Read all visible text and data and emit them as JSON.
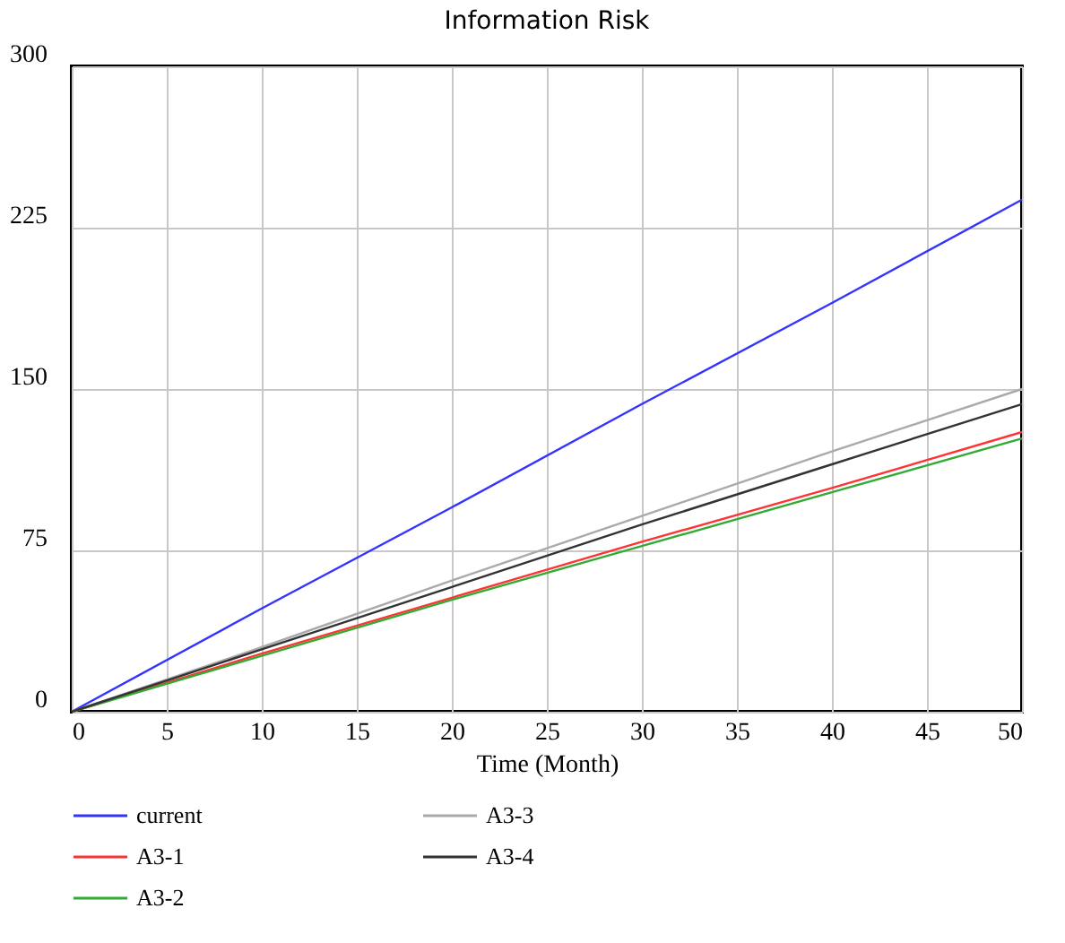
{
  "chart_data": {
    "type": "line",
    "title": "Information Risk",
    "xlabel": "Time (Month)",
    "x": [
      0,
      10,
      20,
      30,
      40,
      50
    ],
    "series": [
      {
        "name": "current",
        "color": "#3333ff",
        "values": [
          0,
          48,
          95,
          143,
          190,
          238
        ]
      },
      {
        "name": "A3-1",
        "color": "#ff3333",
        "values": [
          0,
          27,
          53,
          79,
          104,
          130
        ]
      },
      {
        "name": "A3-2",
        "color": "#33aa33",
        "values": [
          0,
          26,
          52,
          77,
          102,
          127
        ]
      },
      {
        "name": "A3-3",
        "color": "#aaaaaa",
        "values": [
          0,
          30,
          61,
          91,
          121,
          150
        ]
      },
      {
        "name": "A3-4",
        "color": "#333333",
        "values": [
          0,
          29,
          58,
          87,
          115,
          143
        ]
      }
    ],
    "xlim": [
      0,
      50
    ],
    "xticks": [
      0,
      5,
      10,
      15,
      20,
      25,
      30,
      35,
      40,
      45,
      50
    ],
    "ylim": [
      0,
      300
    ],
    "yticks": [
      0,
      75,
      150,
      225,
      300
    ],
    "grid": true,
    "legend": "bottom",
    "line_style": "solid"
  }
}
